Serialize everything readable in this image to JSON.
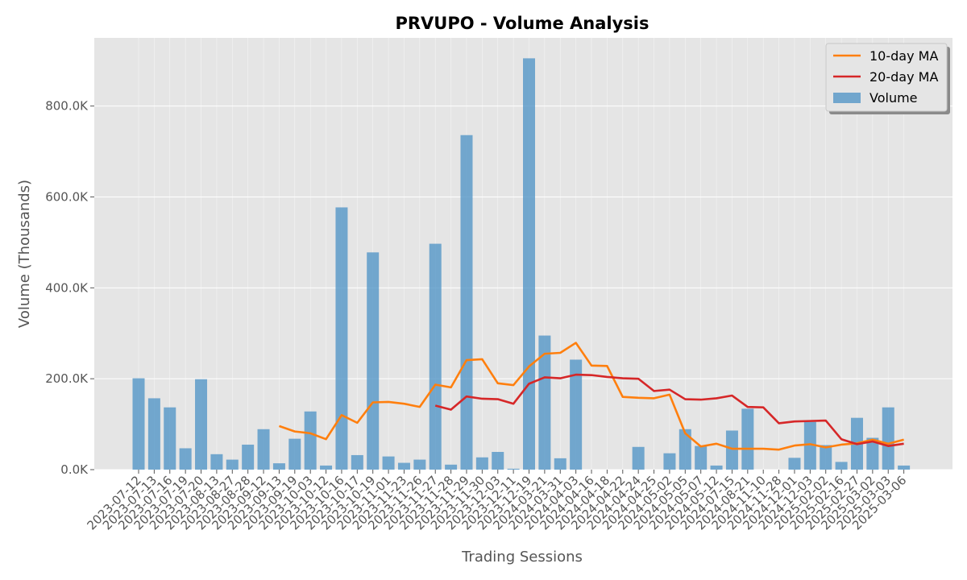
{
  "chart_data": {
    "type": "bar",
    "title": "PRVUPO - Volume Analysis",
    "xlabel": "Trading Sessions",
    "ylabel": "Volume (Thousands)",
    "ylim": [
      0,
      950
    ],
    "yticks": [
      0,
      200,
      400,
      600,
      800
    ],
    "ytick_labels": [
      "0.0K",
      "200.0K",
      "400.0K",
      "600.0K",
      "800.0K"
    ],
    "grid": true,
    "legend_position": "top-right",
    "colors": {
      "volume": "#4a90c4",
      "ma10": "#ff7f0e",
      "ma20": "#d62728",
      "background": "#e5e5e5",
      "grid": "#ffffff"
    },
    "categories": [
      "2023-07-12",
      "2023-07-13",
      "2023-07-16",
      "2023-07-19",
      "2023-07-20",
      "2023-08-13",
      "2023-08-27",
      "2023-08-28",
      "2023-09-12",
      "2023-09-13",
      "2023-09-19",
      "2023-10-03",
      "2023-10-12",
      "2023-10-16",
      "2023-10-17",
      "2023-10-19",
      "2023-11-01",
      "2023-11-23",
      "2023-11-26",
      "2023-11-27",
      "2023-11-28",
      "2023-11-29",
      "2023-11-30",
      "2023-12-03",
      "2023-12-11",
      "2023-12-19",
      "2024-03-21",
      "2024-03-31",
      "2024-04-03",
      "2024-04-16",
      "2024-04-18",
      "2024-04-22",
      "2024-04-24",
      "2024-04-25",
      "2024-05-02",
      "2024-05-05",
      "2024-05-07",
      "2024-05-12",
      "2024-07-15",
      "2024-08-21",
      "2024-11-10",
      "2024-11-28",
      "2024-12-01",
      "2024-12-03",
      "2025-02-02",
      "2025-02-16",
      "2025-02-27",
      "2025-03-02",
      "2025-03-03",
      "2025-03-06"
    ],
    "series": [
      {
        "name": "Volume",
        "kind": "bar",
        "values": [
          201,
          157,
          137,
          47,
          199,
          34,
          22,
          55,
          89,
          14,
          68,
          128,
          9,
          577,
          32,
          478,
          29,
          15,
          22,
          497,
          11,
          736,
          27,
          39,
          2,
          905,
          295,
          25,
          242,
          0,
          0,
          0,
          50,
          0,
          36,
          89,
          52,
          9,
          86,
          134,
          0,
          0,
          26,
          105,
          54,
          17,
          114,
          70,
          137,
          9
        ]
      },
      {
        "name": "10-day MA",
        "kind": "line",
        "values": [
          null,
          null,
          null,
          null,
          null,
          null,
          null,
          null,
          null,
          96,
          84,
          80,
          67,
          120,
          103,
          148,
          149,
          145,
          138,
          187,
          181,
          241,
          243,
          190,
          186,
          227,
          255,
          257,
          279,
          229,
          228,
          160,
          158,
          157,
          165,
          80,
          51,
          57,
          46,
          46,
          46,
          44,
          53,
          56,
          49,
          55,
          58,
          66,
          57,
          66
        ]
      },
      {
        "name": "20-day MA",
        "kind": "line",
        "values": [
          null,
          null,
          null,
          null,
          null,
          null,
          null,
          null,
          null,
          null,
          null,
          null,
          null,
          null,
          null,
          null,
          null,
          null,
          null,
          141,
          132,
          161,
          156,
          155,
          145,
          189,
          203,
          201,
          209,
          208,
          204,
          201,
          200,
          173,
          176,
          155,
          154,
          157,
          163,
          138,
          137,
          102,
          106,
          107,
          108,
          67,
          56,
          62,
          52,
          57
        ]
      }
    ],
    "legend_entries": [
      "10-day MA",
      "20-day MA",
      "Volume"
    ]
  }
}
